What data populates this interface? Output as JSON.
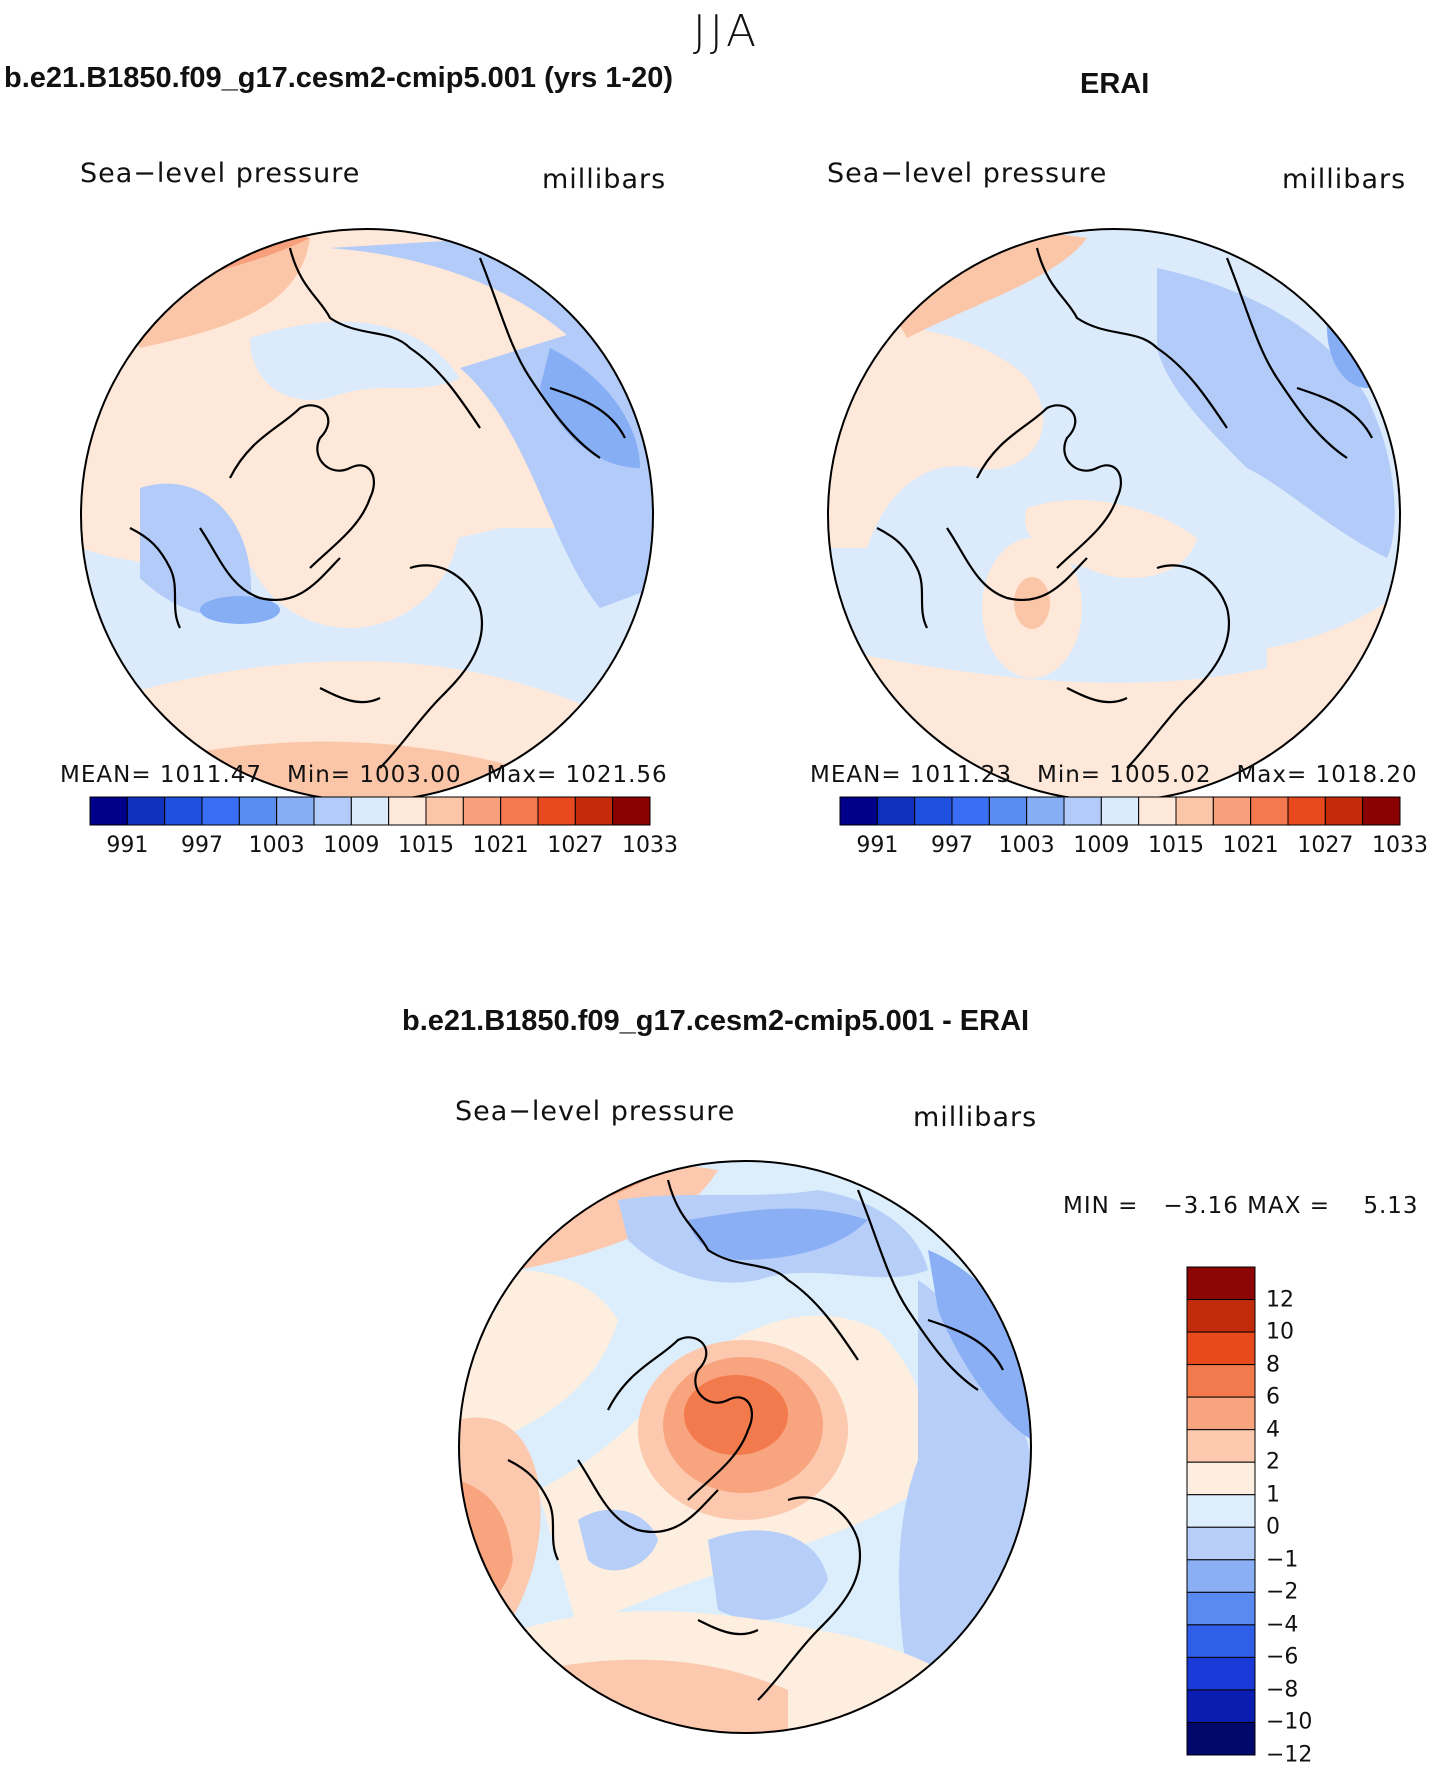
{
  "figure": {
    "title": "JJA"
  },
  "colors": {
    "coastline": "#000000",
    "abs_scale": [
      "#00008b",
      "#1030c0",
      "#2050e0",
      "#3a6ef5",
      "#5a8df0",
      "#86aef5",
      "#b2cbf8",
      "#dcebfb",
      "#fde8da",
      "#fbc6a8",
      "#f8a07c",
      "#f4794e",
      "#e8491e",
      "#c42a08",
      "#8b0000"
    ],
    "diff_scale": [
      "#00086b",
      "#0a1db0",
      "#1a3ad8",
      "#2f5ee8",
      "#5a8af0",
      "#8aaff5",
      "#b6cef8",
      "#dceefc",
      "#fdeedf",
      "#fcc9ae",
      "#f8a47e",
      "#f37a4d",
      "#e84a1b",
      "#c22c0b",
      "#8b0505"
    ]
  },
  "panels": [
    {
      "id": "model",
      "title": "b.e21.B1850.f09_g17.cesm2-cmip5.001 (yrs 1-20)",
      "variable": "Sea−level pressure",
      "units": "millibars",
      "stats": {
        "mean_label": "MEAN=",
        "mean": "1011.47",
        "min_label": "Min=",
        "min": "1003.00",
        "max_label": "Max=",
        "max": "1021.56"
      },
      "colorbar_labels": [
        "991",
        "997",
        "1003",
        "1009",
        "1015",
        "1021",
        "1027",
        "1033"
      ]
    },
    {
      "id": "obs",
      "title": "ERAI",
      "variable": "Sea−level pressure",
      "units": "millibars",
      "stats": {
        "mean_label": "MEAN=",
        "mean": "1011.23",
        "min_label": "Min=",
        "min": "1005.02",
        "max_label": "Max=",
        "max": "1018.20"
      },
      "colorbar_labels": [
        "991",
        "997",
        "1003",
        "1009",
        "1015",
        "1021",
        "1027",
        "1033"
      ]
    },
    {
      "id": "diff",
      "title": "b.e21.B1850.f09_g17.cesm2-cmip5.001 - ERAI",
      "variable": "Sea−level pressure",
      "units": "millibars",
      "stats": {
        "min_label": "MIN =",
        "min": "−3.16",
        "max_label": "MAX =",
        "max": "5.13"
      },
      "colorbar_labels": [
        "12",
        "10",
        "8",
        "6",
        "4",
        "2",
        "1",
        "0",
        "−1",
        "−2",
        "−4",
        "−6",
        "−8",
        "−10",
        "−12"
      ]
    }
  ]
}
